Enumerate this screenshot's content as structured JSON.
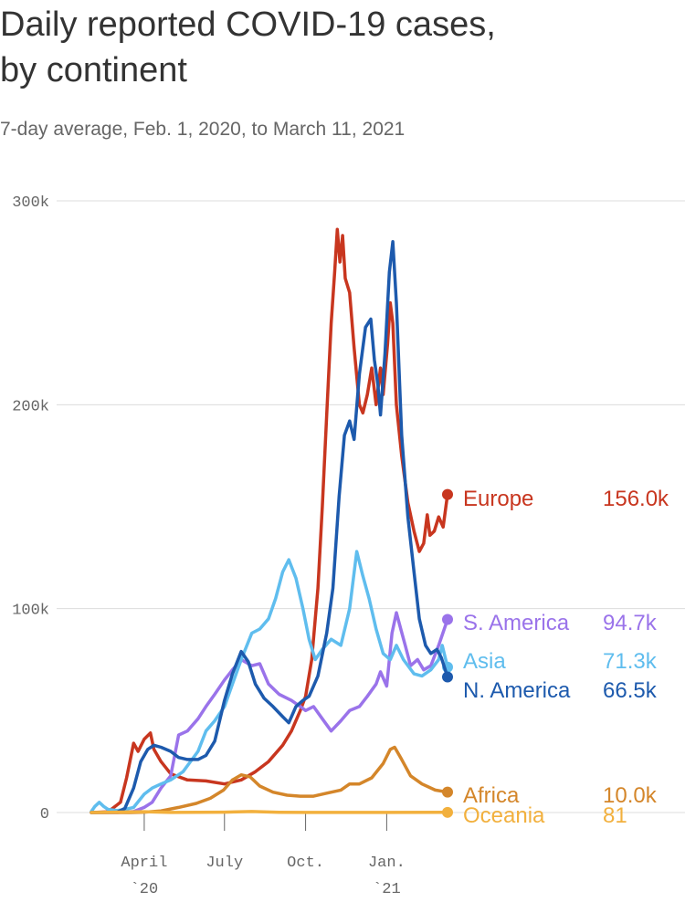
{
  "title": "Daily reported COVID-19 cases, by continent",
  "subtitle": "7-day average, Feb. 1, 2020, to March 11, 2021",
  "chart_data": {
    "type": "line",
    "xlim": [
      "2020-02-01",
      "2021-03-11"
    ],
    "ylim": [
      0,
      300000
    ],
    "grid": true,
    "y_ticks": [
      {
        "value": 0,
        "label": "0"
      },
      {
        "value": 100000,
        "label": "100k"
      },
      {
        "value": 200000,
        "label": "200k"
      },
      {
        "value": 300000,
        "label": "300k"
      }
    ],
    "x_ticks": [
      {
        "date": "2020-04-01",
        "label": "April",
        "sub": "`20"
      },
      {
        "date": "2020-07-01",
        "label": "July",
        "sub": ""
      },
      {
        "date": "2020-10-01",
        "label": "Oct.",
        "sub": ""
      },
      {
        "date": "2021-01-01",
        "label": "Jan.",
        "sub": "`21"
      }
    ],
    "series": [
      {
        "name": "Europe",
        "value_label": "156.0k",
        "color": "#c8361f",
        "points": [
          [
            "2020-02-01",
            0
          ],
          [
            "2020-02-20",
            300
          ],
          [
            "2020-03-05",
            5000
          ],
          [
            "2020-03-12",
            17000
          ],
          [
            "2020-03-20",
            34000
          ],
          [
            "2020-03-25",
            30000
          ],
          [
            "2020-04-01",
            36000
          ],
          [
            "2020-04-08",
            39000
          ],
          [
            "2020-04-12",
            31000
          ],
          [
            "2020-04-20",
            25000
          ],
          [
            "2020-05-01",
            19000
          ],
          [
            "2020-05-20",
            16000
          ],
          [
            "2020-06-10",
            15500
          ],
          [
            "2020-07-01",
            14000
          ],
          [
            "2020-07-20",
            16000
          ],
          [
            "2020-08-05",
            20000
          ],
          [
            "2020-08-20",
            25000
          ],
          [
            "2020-09-05",
            33000
          ],
          [
            "2020-09-15",
            40000
          ],
          [
            "2020-09-25",
            50000
          ],
          [
            "2020-10-01",
            57000
          ],
          [
            "2020-10-08",
            75000
          ],
          [
            "2020-10-15",
            110000
          ],
          [
            "2020-10-20",
            150000
          ],
          [
            "2020-10-25",
            195000
          ],
          [
            "2020-10-30",
            240000
          ],
          [
            "2020-11-03",
            265000
          ],
          [
            "2020-11-06",
            286000
          ],
          [
            "2020-11-09",
            270000
          ],
          [
            "2020-11-12",
            283000
          ],
          [
            "2020-11-15",
            262000
          ],
          [
            "2020-11-20",
            255000
          ],
          [
            "2020-11-25",
            228000
          ],
          [
            "2020-12-01",
            200000
          ],
          [
            "2020-12-05",
            196000
          ],
          [
            "2020-12-10",
            205000
          ],
          [
            "2020-12-15",
            218000
          ],
          [
            "2020-12-20",
            200000
          ],
          [
            "2020-12-25",
            218000
          ],
          [
            "2020-12-28",
            205000
          ],
          [
            "2021-01-02",
            230000
          ],
          [
            "2021-01-05",
            250000
          ],
          [
            "2021-01-08",
            240000
          ],
          [
            "2021-01-12",
            200000
          ],
          [
            "2021-01-18",
            175000
          ],
          [
            "2021-01-25",
            152000
          ],
          [
            "2021-02-01",
            138000
          ],
          [
            "2021-02-07",
            128000
          ],
          [
            "2021-02-12",
            132000
          ],
          [
            "2021-02-16",
            146000
          ],
          [
            "2021-02-19",
            136000
          ],
          [
            "2021-02-24",
            138000
          ],
          [
            "2021-03-01",
            145000
          ],
          [
            "2021-03-06",
            140000
          ],
          [
            "2021-03-11",
            156000
          ]
        ]
      },
      {
        "name": "S. America",
        "value_label": "94.7k",
        "color": "#9a73ea",
        "points": [
          [
            "2020-02-01",
            0
          ],
          [
            "2020-03-01",
            0
          ],
          [
            "2020-03-20",
            500
          ],
          [
            "2020-04-01",
            2500
          ],
          [
            "2020-04-10",
            5000
          ],
          [
            "2020-04-20",
            12000
          ],
          [
            "2020-05-01",
            18000
          ],
          [
            "2020-05-10",
            38000
          ],
          [
            "2020-05-20",
            40000
          ],
          [
            "2020-06-01",
            46000
          ],
          [
            "2020-06-10",
            52000
          ],
          [
            "2020-06-20",
            58000
          ],
          [
            "2020-07-01",
            65000
          ],
          [
            "2020-07-10",
            70000
          ],
          [
            "2020-07-20",
            75000
          ],
          [
            "2020-08-01",
            72000
          ],
          [
            "2020-08-10",
            73000
          ],
          [
            "2020-08-20",
            63000
          ],
          [
            "2020-09-01",
            58000
          ],
          [
            "2020-09-15",
            55000
          ],
          [
            "2020-09-25",
            52000
          ],
          [
            "2020-10-01",
            50000
          ],
          [
            "2020-10-10",
            52000
          ],
          [
            "2020-10-20",
            46000
          ],
          [
            "2020-10-30",
            40000
          ],
          [
            "2020-11-10",
            45000
          ],
          [
            "2020-11-20",
            50000
          ],
          [
            "2020-12-01",
            52000
          ],
          [
            "2020-12-10",
            57000
          ],
          [
            "2020-12-20",
            63000
          ],
          [
            "2020-12-25",
            69000
          ],
          [
            "2021-01-01",
            62000
          ],
          [
            "2021-01-07",
            88000
          ],
          [
            "2021-01-12",
            98000
          ],
          [
            "2021-01-17",
            90000
          ],
          [
            "2021-01-22",
            82000
          ],
          [
            "2021-01-28",
            72000
          ],
          [
            "2021-02-05",
            75000
          ],
          [
            "2021-02-12",
            70000
          ],
          [
            "2021-02-20",
            72000
          ],
          [
            "2021-03-01",
            82000
          ],
          [
            "2021-03-11",
            94700
          ]
        ]
      },
      {
        "name": "Asia",
        "value_label": "71.3k",
        "color": "#5fbdee",
        "points": [
          [
            "2020-02-01",
            500
          ],
          [
            "2020-02-05",
            3000
          ],
          [
            "2020-02-10",
            5000
          ],
          [
            "2020-02-15",
            3000
          ],
          [
            "2020-02-20",
            1500
          ],
          [
            "2020-03-01",
            1000
          ],
          [
            "2020-03-10",
            1500
          ],
          [
            "2020-03-20",
            2500
          ],
          [
            "2020-04-01",
            9000
          ],
          [
            "2020-04-10",
            12000
          ],
          [
            "2020-04-20",
            14000
          ],
          [
            "2020-05-01",
            16000
          ],
          [
            "2020-05-15",
            20000
          ],
          [
            "2020-06-01",
            30000
          ],
          [
            "2020-06-10",
            40000
          ],
          [
            "2020-06-20",
            45000
          ],
          [
            "2020-07-01",
            52000
          ],
          [
            "2020-07-10",
            63000
          ],
          [
            "2020-07-20",
            75000
          ],
          [
            "2020-08-01",
            88000
          ],
          [
            "2020-08-10",
            90000
          ],
          [
            "2020-08-20",
            95000
          ],
          [
            "2020-08-28",
            105000
          ],
          [
            "2020-09-05",
            118000
          ],
          [
            "2020-09-12",
            124000
          ],
          [
            "2020-09-20",
            115000
          ],
          [
            "2020-09-28",
            100000
          ],
          [
            "2020-10-05",
            85000
          ],
          [
            "2020-10-12",
            75000
          ],
          [
            "2020-10-20",
            80000
          ],
          [
            "2020-10-30",
            85000
          ],
          [
            "2020-11-10",
            82000
          ],
          [
            "2020-11-20",
            100000
          ],
          [
            "2020-11-28",
            128000
          ],
          [
            "2020-12-05",
            116000
          ],
          [
            "2020-12-12",
            105000
          ],
          [
            "2020-12-20",
            90000
          ],
          [
            "2020-12-28",
            78000
          ],
          [
            "2021-01-05",
            75000
          ],
          [
            "2021-01-12",
            82000
          ],
          [
            "2021-01-20",
            75000
          ],
          [
            "2021-02-01",
            68000
          ],
          [
            "2021-02-10",
            67000
          ],
          [
            "2021-02-20",
            70000
          ],
          [
            "2021-03-01",
            75000
          ],
          [
            "2021-03-05",
            82000
          ],
          [
            "2021-03-11",
            71300
          ]
        ]
      },
      {
        "name": "N. America",
        "value_label": "66.5k",
        "color": "#1d5aad",
        "points": [
          [
            "2020-02-01",
            0
          ],
          [
            "2020-03-01",
            100
          ],
          [
            "2020-03-10",
            2000
          ],
          [
            "2020-03-20",
            12000
          ],
          [
            "2020-03-28",
            25000
          ],
          [
            "2020-04-05",
            31000
          ],
          [
            "2020-04-12",
            33000
          ],
          [
            "2020-04-20",
            32000
          ],
          [
            "2020-05-01",
            30000
          ],
          [
            "2020-05-10",
            27000
          ],
          [
            "2020-05-20",
            26000
          ],
          [
            "2020-06-01",
            26000
          ],
          [
            "2020-06-10",
            28000
          ],
          [
            "2020-06-20",
            35000
          ],
          [
            "2020-07-01",
            55000
          ],
          [
            "2020-07-10",
            68000
          ],
          [
            "2020-07-20",
            79000
          ],
          [
            "2020-07-28",
            74000
          ],
          [
            "2020-08-05",
            63000
          ],
          [
            "2020-08-15",
            56000
          ],
          [
            "2020-08-25",
            52000
          ],
          [
            "2020-09-05",
            47000
          ],
          [
            "2020-09-12",
            44000
          ],
          [
            "2020-09-20",
            52000
          ],
          [
            "2020-09-28",
            55000
          ],
          [
            "2020-10-05",
            57000
          ],
          [
            "2020-10-15",
            67000
          ],
          [
            "2020-10-25",
            88000
          ],
          [
            "2020-11-01",
            110000
          ],
          [
            "2020-11-08",
            155000
          ],
          [
            "2020-11-14",
            185000
          ],
          [
            "2020-11-20",
            192000
          ],
          [
            "2020-11-25",
            183000
          ],
          [
            "2020-12-01",
            215000
          ],
          [
            "2020-12-08",
            238000
          ],
          [
            "2020-12-14",
            242000
          ],
          [
            "2020-12-18",
            222000
          ],
          [
            "2020-12-22",
            210000
          ],
          [
            "2020-12-25",
            195000
          ],
          [
            "2020-12-30",
            225000
          ],
          [
            "2021-01-04",
            265000
          ],
          [
            "2021-01-08",
            280000
          ],
          [
            "2021-01-12",
            250000
          ],
          [
            "2021-01-18",
            185000
          ],
          [
            "2021-01-25",
            145000
          ],
          [
            "2021-02-01",
            118000
          ],
          [
            "2021-02-07",
            95000
          ],
          [
            "2021-02-14",
            82000
          ],
          [
            "2021-02-20",
            78000
          ],
          [
            "2021-02-27",
            80000
          ],
          [
            "2021-03-04",
            76000
          ],
          [
            "2021-03-11",
            66500
          ]
        ]
      },
      {
        "name": "Africa",
        "value_label": "10.0k",
        "color": "#d4862a",
        "points": [
          [
            "2020-02-01",
            0
          ],
          [
            "2020-03-15",
            0
          ],
          [
            "2020-04-01",
            200
          ],
          [
            "2020-04-20",
            800
          ],
          [
            "2020-05-10",
            2500
          ],
          [
            "2020-05-30",
            4500
          ],
          [
            "2020-06-15",
            7000
          ],
          [
            "2020-06-30",
            11000
          ],
          [
            "2020-07-10",
            16000
          ],
          [
            "2020-07-20",
            18500
          ],
          [
            "2020-07-30",
            17500
          ],
          [
            "2020-08-10",
            13000
          ],
          [
            "2020-08-25",
            10000
          ],
          [
            "2020-09-10",
            8500
          ],
          [
            "2020-09-25",
            8000
          ],
          [
            "2020-10-10",
            8000
          ],
          [
            "2020-10-25",
            9500
          ],
          [
            "2020-11-10",
            11000
          ],
          [
            "2020-11-20",
            14000
          ],
          [
            "2020-12-01",
            14000
          ],
          [
            "2020-12-15",
            17000
          ],
          [
            "2020-12-28",
            24000
          ],
          [
            "2021-01-05",
            31000
          ],
          [
            "2021-01-10",
            32000
          ],
          [
            "2021-01-18",
            26000
          ],
          [
            "2021-01-28",
            18000
          ],
          [
            "2021-02-10",
            14000
          ],
          [
            "2021-02-25",
            11000
          ],
          [
            "2021-03-11",
            10000
          ]
        ]
      },
      {
        "name": "Oceania",
        "value_label": "81",
        "color": "#f2b03d",
        "points": [
          [
            "2020-02-01",
            0
          ],
          [
            "2020-03-20",
            300
          ],
          [
            "2020-04-01",
            400
          ],
          [
            "2020-05-01",
            50
          ],
          [
            "2020-07-01",
            200
          ],
          [
            "2020-08-01",
            500
          ],
          [
            "2020-09-01",
            150
          ],
          [
            "2020-10-01",
            50
          ],
          [
            "2021-01-01",
            50
          ],
          [
            "2021-03-11",
            81
          ]
        ]
      }
    ]
  }
}
